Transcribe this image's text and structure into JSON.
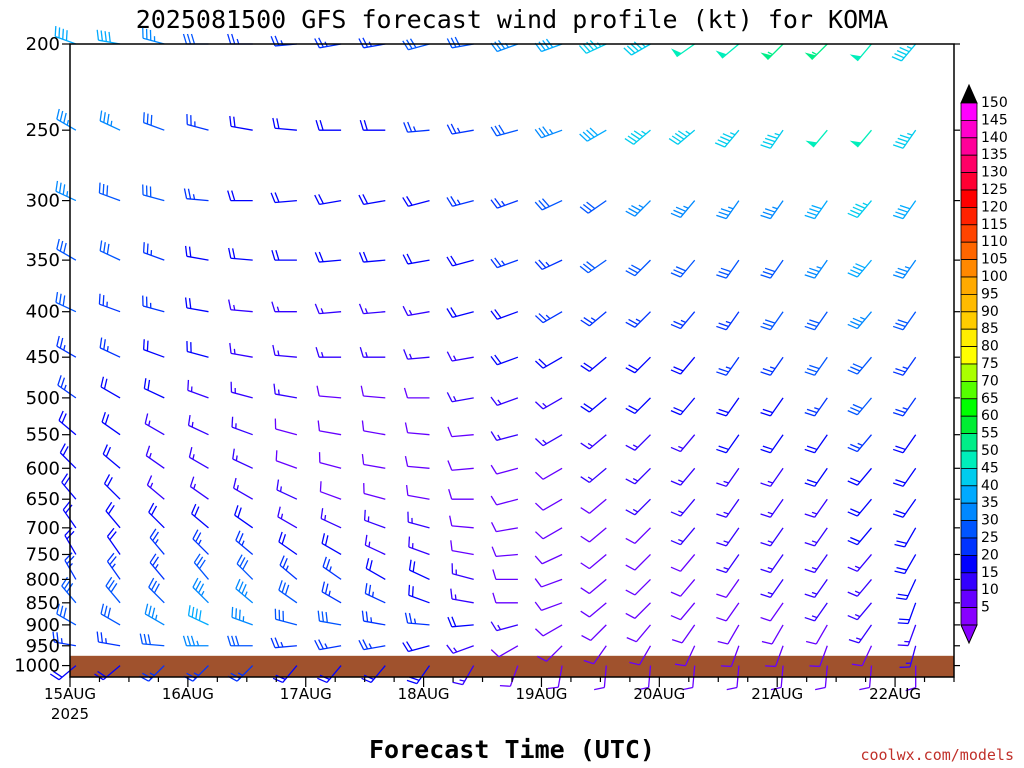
{
  "chart_data": {
    "type": "wind-barb-profile",
    "title": "2025081500 GFS forecast wind profile (kt) for KOMA",
    "xlabel": "Forecast Time (UTC)",
    "ylabel": "",
    "credit": "coolwx.com/models",
    "x_ticks": [
      {
        "label": "15AUG",
        "sublabel": "2025",
        "day": 0
      },
      {
        "label": "16AUG",
        "day": 1
      },
      {
        "label": "17AUG",
        "day": 2
      },
      {
        "label": "18AUG",
        "day": 3
      },
      {
        "label": "19AUG",
        "day": 4
      },
      {
        "label": "20AUG",
        "day": 5
      },
      {
        "label": "21AUG",
        "day": 6
      },
      {
        "label": "22AUG",
        "day": 7
      }
    ],
    "xlim": [
      0,
      7.5
    ],
    "y_ticks": [
      {
        "label": "200",
        "p": 200
      },
      {
        "label": "250",
        "p": 250
      },
      {
        "label": "300",
        "p": 300
      },
      {
        "label": "350",
        "p": 350
      },
      {
        "label": "400",
        "p": 400
      },
      {
        "label": "450",
        "p": 450
      },
      {
        "label": "500",
        "p": 500
      },
      {
        "label": "550",
        "p": 550
      },
      {
        "label": "600",
        "p": 600
      },
      {
        "label": "650",
        "p": 650
      },
      {
        "label": "700",
        "p": 700
      },
      {
        "label": "750",
        "p": 750
      },
      {
        "label": "800",
        "p": 800
      },
      {
        "label": "850",
        "p": 850
      },
      {
        "label": "900",
        "p": 900
      },
      {
        "label": "950",
        "p": 950
      },
      {
        "label": "1000",
        "p": 1000
      }
    ],
    "ylim": [
      1030,
      200
    ],
    "y_scale": "log",
    "ground_color": "#a0522d",
    "colorbar": {
      "labels": [
        "150",
        "145",
        "140",
        "135",
        "130",
        "125",
        "120",
        "115",
        "110",
        "105",
        "100",
        "95",
        "90",
        "85",
        "80",
        "75",
        "70",
        "65",
        "60",
        "55",
        "50",
        "45",
        "40",
        "35",
        "30",
        "25",
        "20",
        "15",
        "10",
        "5"
      ],
      "colors": [
        "#ff00ff",
        "#ff00cc",
        "#ff0099",
        "#ff0066",
        "#ff0033",
        "#ff0000",
        "#ff2200",
        "#ff4400",
        "#ff6600",
        "#ff8800",
        "#ffaa00",
        "#ffbb00",
        "#ffcc00",
        "#ffee00",
        "#ffff00",
        "#aaff00",
        "#55ff00",
        "#00ff00",
        "#00ee33",
        "#00ee88",
        "#00eebb",
        "#00ccee",
        "#00aaff",
        "#0088ff",
        "#0055ff",
        "#0033ff",
        "#0000ff",
        "#3300ff",
        "#6600ff",
        "#8800ff"
      ],
      "top_arrow": "#000000",
      "bottom_arrow": "#8800ff"
    },
    "profile": [
      {
        "p": 200,
        "dir": [
          290,
          280,
          285,
          270,
          270,
          265,
          260,
          260,
          255,
          260,
          250,
          250,
          245,
          240,
          235,
          230,
          225,
          225,
          220,
          220
        ],
        "spd": [
          40,
          40,
          35,
          30,
          25,
          25,
          25,
          25,
          30,
          30,
          35,
          40,
          45,
          45,
          50,
          50,
          55,
          55,
          50,
          45
        ]
      },
      {
        "p": 250,
        "dir": [
          300,
          295,
          290,
          285,
          280,
          275,
          270,
          270,
          265,
          260,
          255,
          250,
          240,
          230,
          230,
          220,
          215,
          220,
          220,
          215
        ],
        "spd": [
          35,
          35,
          30,
          25,
          20,
          20,
          20,
          20,
          25,
          25,
          30,
          35,
          40,
          45,
          45,
          45,
          45,
          50,
          50,
          45
        ]
      },
      {
        "p": 300,
        "dir": [
          295,
          290,
          285,
          275,
          270,
          265,
          260,
          260,
          255,
          255,
          250,
          245,
          235,
          225,
          220,
          215,
          215,
          215,
          220,
          215
        ],
        "spd": [
          35,
          30,
          30,
          25,
          20,
          20,
          20,
          20,
          20,
          25,
          25,
          30,
          30,
          35,
          35,
          35,
          35,
          40,
          45,
          40
        ]
      },
      {
        "p": 350,
        "dir": [
          300,
          295,
          290,
          280,
          275,
          270,
          265,
          265,
          260,
          255,
          250,
          245,
          235,
          225,
          220,
          215,
          215,
          215,
          220,
          215
        ],
        "spd": [
          30,
          30,
          25,
          20,
          20,
          20,
          20,
          20,
          20,
          20,
          25,
          25,
          30,
          30,
          30,
          30,
          30,
          35,
          40,
          35
        ]
      },
      {
        "p": 400,
        "dir": [
          295,
          290,
          285,
          280,
          275,
          270,
          265,
          265,
          260,
          255,
          250,
          240,
          230,
          225,
          220,
          215,
          215,
          215,
          220,
          215
        ],
        "spd": [
          30,
          25,
          25,
          20,
          15,
          15,
          15,
          15,
          15,
          20,
          20,
          25,
          25,
          25,
          25,
          25,
          30,
          30,
          35,
          30
        ]
      },
      {
        "p": 450,
        "dir": [
          300,
          295,
          290,
          285,
          280,
          275,
          270,
          270,
          265,
          260,
          250,
          240,
          230,
          225,
          220,
          215,
          215,
          215,
          220,
          215
        ],
        "spd": [
          25,
          25,
          20,
          20,
          15,
          15,
          15,
          15,
          15,
          15,
          20,
          20,
          20,
          20,
          20,
          25,
          25,
          30,
          30,
          25
        ]
      },
      {
        "p": 500,
        "dir": [
          305,
          300,
          295,
          290,
          285,
          280,
          275,
          275,
          270,
          260,
          250,
          240,
          230,
          225,
          220,
          215,
          215,
          215,
          220,
          215
        ],
        "spd": [
          25,
          20,
          20,
          15,
          15,
          15,
          10,
          10,
          10,
          15,
          15,
          15,
          20,
          20,
          20,
          20,
          20,
          25,
          30,
          25
        ]
      },
      {
        "p": 550,
        "dir": [
          310,
          305,
          300,
          295,
          290,
          285,
          280,
          280,
          275,
          265,
          255,
          240,
          230,
          225,
          220,
          215,
          215,
          215,
          220,
          215
        ],
        "spd": [
          20,
          20,
          15,
          15,
          15,
          10,
          10,
          10,
          10,
          10,
          15,
          15,
          15,
          15,
          15,
          20,
          20,
          20,
          25,
          20
        ]
      },
      {
        "p": 600,
        "dir": [
          315,
          310,
          305,
          300,
          295,
          290,
          285,
          280,
          275,
          265,
          255,
          240,
          230,
          225,
          220,
          215,
          215,
          215,
          220,
          215
        ],
        "spd": [
          20,
          20,
          15,
          15,
          15,
          10,
          10,
          10,
          10,
          10,
          10,
          10,
          15,
          15,
          15,
          15,
          15,
          20,
          20,
          20
        ]
      },
      {
        "p": 650,
        "dir": [
          320,
          315,
          310,
          305,
          300,
          295,
          290,
          285,
          280,
          270,
          255,
          240,
          230,
          225,
          220,
          215,
          215,
          215,
          220,
          215
        ],
        "spd": [
          20,
          20,
          15,
          15,
          15,
          15,
          10,
          10,
          10,
          10,
          10,
          10,
          10,
          15,
          15,
          15,
          15,
          15,
          20,
          20
        ]
      },
      {
        "p": 700,
        "dir": [
          325,
          320,
          315,
          310,
          305,
          300,
          295,
          290,
          285,
          275,
          260,
          240,
          230,
          225,
          220,
          215,
          215,
          215,
          220,
          210
        ],
        "spd": [
          20,
          20,
          20,
          20,
          20,
          15,
          15,
          15,
          15,
          10,
          10,
          10,
          10,
          10,
          15,
          15,
          15,
          15,
          20,
          20
        ]
      },
      {
        "p": 750,
        "dir": [
          330,
          325,
          320,
          315,
          310,
          305,
          300,
          295,
          290,
          280,
          265,
          245,
          230,
          225,
          220,
          215,
          215,
          215,
          220,
          210
        ],
        "spd": [
          20,
          20,
          25,
          25,
          25,
          20,
          20,
          15,
          15,
          10,
          10,
          10,
          10,
          10,
          10,
          15,
          15,
          15,
          15,
          20
        ]
      },
      {
        "p": 800,
        "dir": [
          330,
          325,
          320,
          320,
          315,
          310,
          305,
          300,
          295,
          285,
          270,
          250,
          230,
          225,
          220,
          215,
          215,
          215,
          220,
          205
        ],
        "spd": [
          25,
          25,
          25,
          30,
          30,
          25,
          25,
          20,
          20,
          15,
          10,
          10,
          10,
          10,
          10,
          10,
          15,
          15,
          15,
          20
        ]
      },
      {
        "p": 850,
        "dir": [
          320,
          320,
          315,
          315,
          310,
          305,
          300,
          295,
          290,
          280,
          270,
          250,
          230,
          225,
          220,
          215,
          215,
          215,
          220,
          200
        ],
        "spd": [
          30,
          30,
          30,
          35,
          35,
          30,
          25,
          25,
          20,
          15,
          10,
          10,
          10,
          10,
          10,
          10,
          10,
          15,
          15,
          20
        ]
      },
      {
        "p": 900,
        "dir": [
          300,
          300,
          300,
          295,
          290,
          285,
          280,
          280,
          275,
          265,
          255,
          240,
          225,
          220,
          215,
          210,
          210,
          210,
          215,
          200
        ],
        "spd": [
          30,
          30,
          35,
          40,
          35,
          30,
          30,
          25,
          25,
          20,
          15,
          10,
          10,
          10,
          10,
          10,
          10,
          10,
          15,
          15
        ]
      },
      {
        "p": 950,
        "dir": [
          280,
          280,
          275,
          270,
          270,
          265,
          260,
          260,
          255,
          250,
          240,
          225,
          215,
          210,
          205,
          200,
          200,
          200,
          205,
          195
        ],
        "spd": [
          25,
          25,
          30,
          35,
          30,
          25,
          25,
          25,
          20,
          15,
          10,
          10,
          10,
          10,
          10,
          10,
          10,
          10,
          10,
          15
        ]
      },
      {
        "p": 1000,
        "dir": [
          230,
          230,
          225,
          225,
          225,
          220,
          220,
          220,
          215,
          210,
          200,
          190,
          185,
          185,
          185,
          185,
          185,
          185,
          185,
          180
        ],
        "spd": [
          20,
          20,
          25,
          25,
          25,
          20,
          20,
          20,
          20,
          15,
          10,
          10,
          10,
          10,
          10,
          10,
          10,
          10,
          10,
          10
        ]
      }
    ]
  }
}
